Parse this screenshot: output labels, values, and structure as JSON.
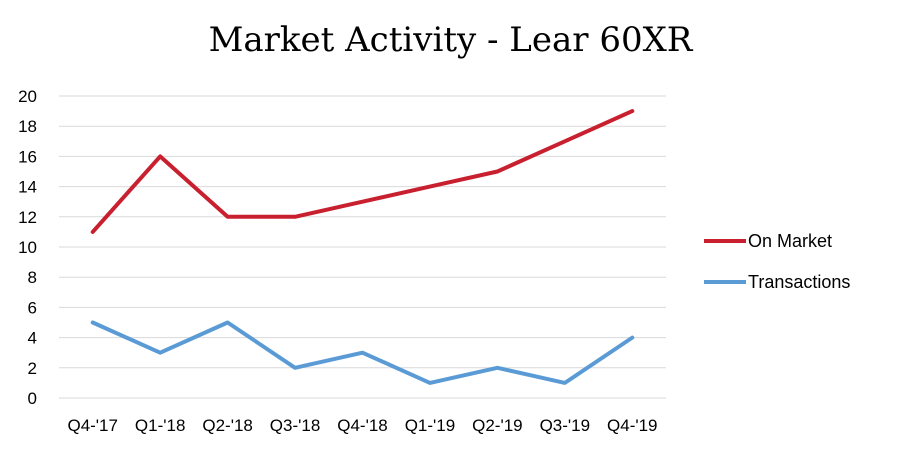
{
  "chart_data": {
    "type": "line",
    "title": "Market Activity - Lear 60XR",
    "xlabel": "",
    "ylabel": "",
    "categories": [
      "Q4-'17",
      "Q1-'18",
      "Q2-'18",
      "Q3-'18",
      "Q4-'18",
      "Q1-'19",
      "Q2-'19",
      "Q3-'19",
      "Q4-'19"
    ],
    "ylim": [
      0,
      20
    ],
    "yticks": [
      "0",
      "2",
      "4",
      "6",
      "8",
      "10",
      "12",
      "14",
      "16",
      "18",
      "20"
    ],
    "grid": true,
    "legend_position": "right",
    "series": [
      {
        "name": "On Market",
        "color": "#c8202e",
        "values": [
          11,
          16,
          12,
          12,
          13,
          14,
          15,
          17,
          19
        ]
      },
      {
        "name": "Transactions",
        "color": "#5b9bd5",
        "values": [
          5,
          3,
          5,
          2,
          3,
          1,
          2,
          1,
          4
        ]
      }
    ]
  }
}
